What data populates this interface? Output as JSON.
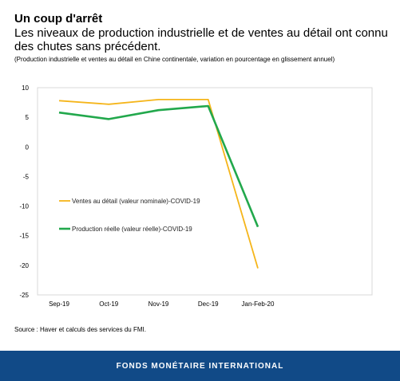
{
  "header": {
    "title": "Un coup d'arrêt",
    "subtitle": "Les niveaux de production industrielle et de ventes au détail ont connu des chutes sans précédent.",
    "note": "(Production industrielle et ventes au détail en Chine continentale, variation en pourcentage en glissement annuel)"
  },
  "source": "Source : Haver et calculs des services du FMI.",
  "footer": {
    "label": "FONDS MONÉTAIRE INTERNATIONAL",
    "background": "#114a87"
  },
  "chart_data": {
    "type": "line",
    "categories": [
      "Sep-19",
      "Oct-19",
      "Nov-19",
      "Dec-19",
      "Jan-Feb-20"
    ],
    "series": [
      {
        "name": "Ventes au détail (valeur nominale)-COVID-19",
        "color": "#f5b51a",
        "values": [
          7.8,
          7.2,
          8.0,
          8.0,
          -20.5
        ]
      },
      {
        "name": "Production réelle (valeur réelle)-COVID-19",
        "color": "#22a84c",
        "values": [
          5.8,
          4.7,
          6.2,
          6.9,
          -13.5
        ]
      }
    ],
    "ylim": [
      -25,
      10
    ],
    "yticks": [
      10,
      5,
      0,
      -5,
      -10,
      -15,
      -20,
      -25
    ],
    "grid": false,
    "legend_position": "left-middle"
  }
}
